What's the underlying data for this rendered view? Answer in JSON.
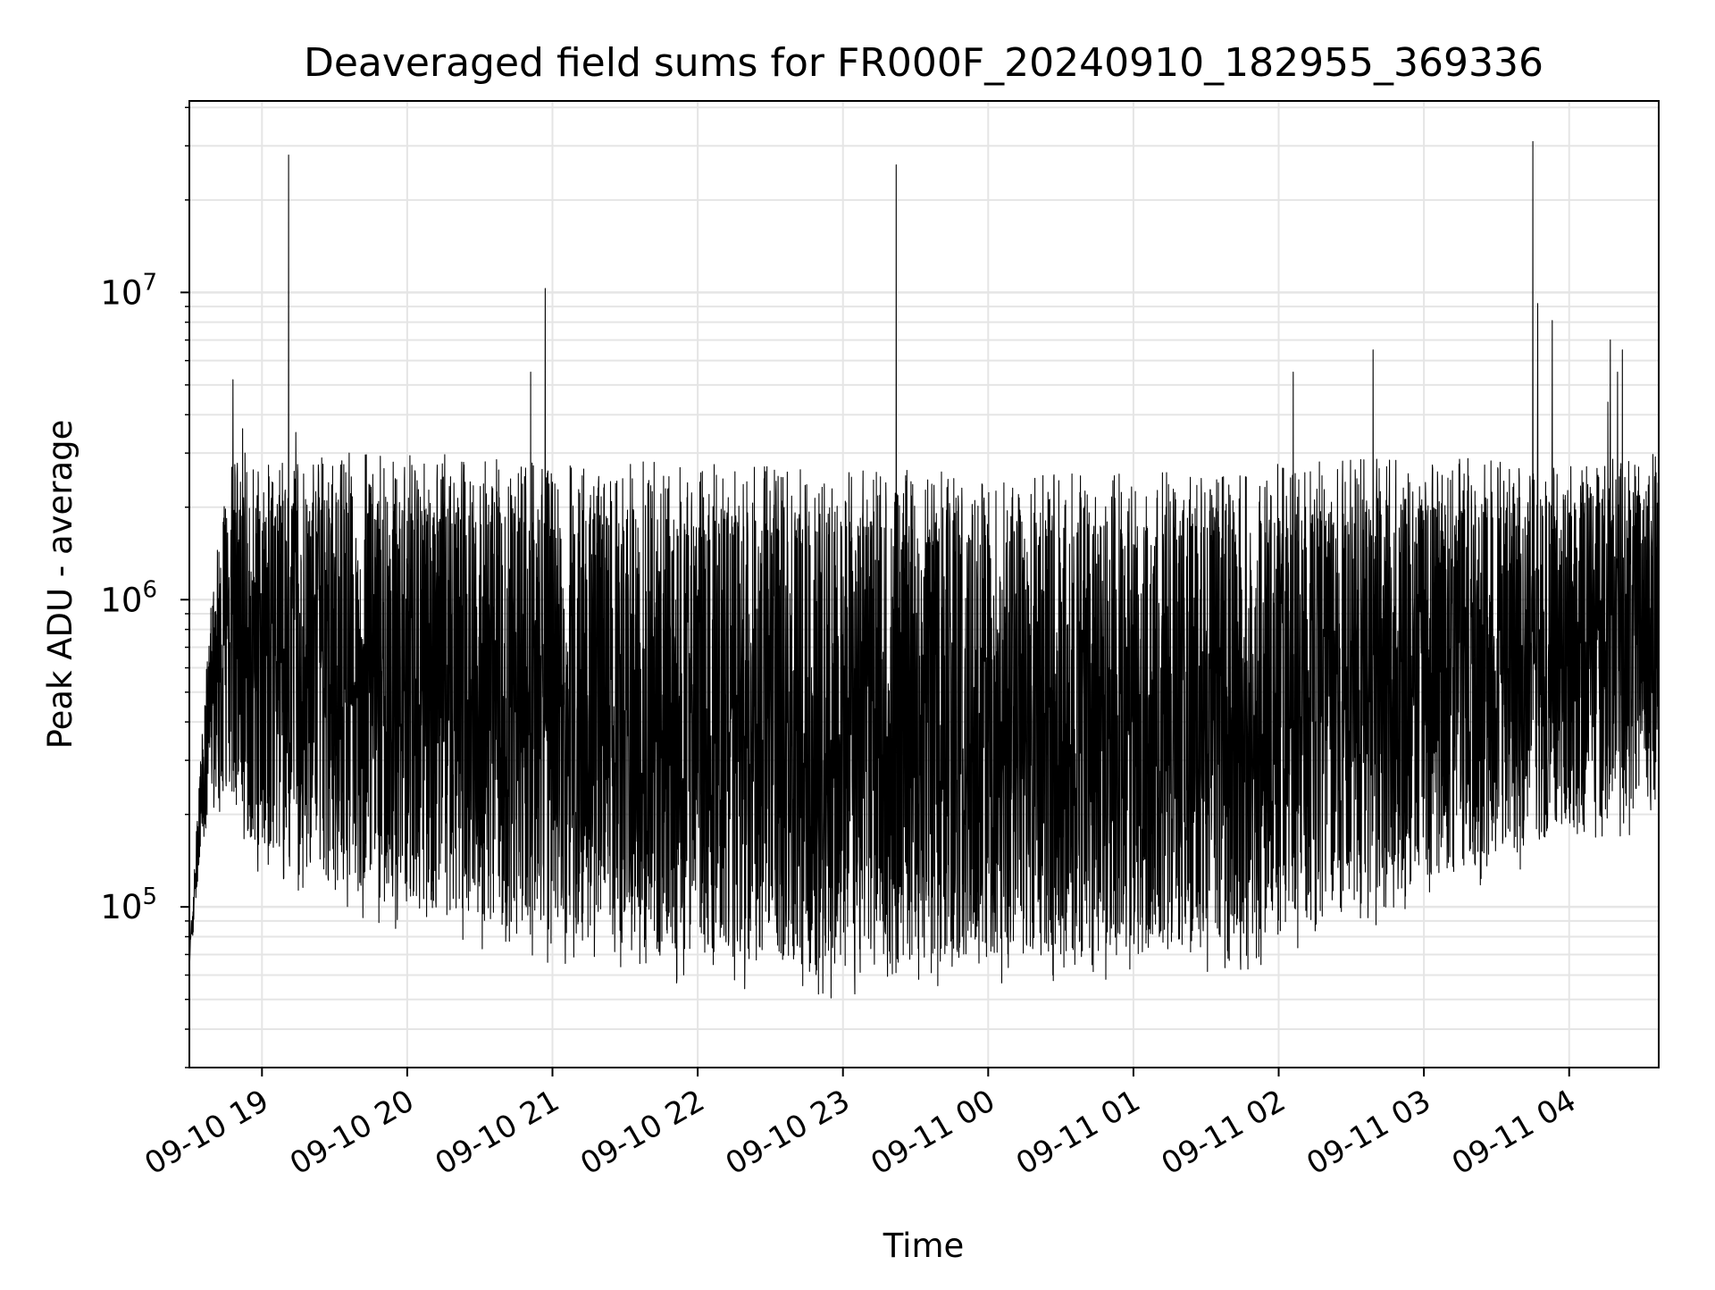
{
  "chart_data": {
    "type": "line",
    "title": "Deaveraged field sums for FR000F_20240910_182955_369336",
    "xlabel": "Time",
    "ylabel": "Peak ADU - average",
    "y_scale": "log",
    "ylim": [
      30000,
      42000000
    ],
    "xlim": [
      "2024-09-10 18:30",
      "2024-09-11 04:37"
    ],
    "grid": true,
    "line_color": "#000000",
    "grid_color": "#e5e5e5",
    "x_ticks": [
      {
        "t": "2024-09-10 19:00",
        "label": "09-10 19"
      },
      {
        "t": "2024-09-10 20:00",
        "label": "09-10 20"
      },
      {
        "t": "2024-09-10 21:00",
        "label": "09-10 21"
      },
      {
        "t": "2024-09-10 22:00",
        "label": "09-10 22"
      },
      {
        "t": "2024-09-10 23:00",
        "label": "09-10 23"
      },
      {
        "t": "2024-09-11 00:00",
        "label": "09-11 00"
      },
      {
        "t": "2024-09-11 01:00",
        "label": "09-11 01"
      },
      {
        "t": "2024-09-11 02:00",
        "label": "09-11 02"
      },
      {
        "t": "2024-09-11 03:00",
        "label": "09-11 03"
      },
      {
        "t": "2024-09-11 04:00",
        "label": "09-11 04"
      }
    ],
    "y_ticks": [
      {
        "value": 100000,
        "base": "10",
        "exp": "5"
      },
      {
        "value": 1000000,
        "base": "10",
        "exp": "6"
      },
      {
        "value": 10000000,
        "base": "10",
        "exp": "7"
      }
    ],
    "spikes": [
      {
        "t": "2024-09-10 18:48",
        "v": 5200000
      },
      {
        "t": "2024-09-10 18:52",
        "v": 3600000
      },
      {
        "t": "2024-09-10 18:53",
        "v": 3000000
      },
      {
        "t": "2024-09-10 19:11",
        "v": 28000000
      },
      {
        "t": "2024-09-10 19:14",
        "v": 3500000
      },
      {
        "t": "2024-09-10 19:36",
        "v": 3000000
      },
      {
        "t": "2024-09-10 20:51",
        "v": 5500000
      },
      {
        "t": "2024-09-10 20:57",
        "v": 10300000
      },
      {
        "t": "2024-09-10 21:42",
        "v": 2800000
      },
      {
        "t": "2024-09-10 23:22",
        "v": 26000000
      },
      {
        "t": "2024-09-11 02:06",
        "v": 5500000
      },
      {
        "t": "2024-09-11 02:39",
        "v": 6500000
      },
      {
        "t": "2024-09-11 03:45",
        "v": 31000000
      },
      {
        "t": "2024-09-11 03:47",
        "v": 9200000
      },
      {
        "t": "2024-09-11 03:53",
        "v": 8100000
      },
      {
        "t": "2024-09-11 04:16",
        "v": 4400000
      },
      {
        "t": "2024-09-11 04:17",
        "v": 7000000
      },
      {
        "t": "2024-09-11 04:20",
        "v": 5500000
      },
      {
        "t": "2024-09-11 04:22",
        "v": 6500000
      },
      {
        "t": "2024-09-11 04:23",
        "v": 2500000
      }
    ],
    "upper_envelope": [
      {
        "t": "2024-09-10 18:30",
        "v": 70000
      },
      {
        "t": "2024-09-10 18:35",
        "v": 300000
      },
      {
        "t": "2024-09-10 18:40",
        "v": 1000000
      },
      {
        "t": "2024-09-10 18:45",
        "v": 2000000
      },
      {
        "t": "2024-09-10 19:00",
        "v": 1800000
      },
      {
        "t": "2024-09-10 20:00",
        "v": 1800000
      },
      {
        "t": "2024-09-10 21:00",
        "v": 1600000
      },
      {
        "t": "2024-09-10 22:00",
        "v": 1600000
      },
      {
        "t": "2024-09-10 23:00",
        "v": 1500000
      },
      {
        "t": "2024-09-11 00:00",
        "v": 1500000
      },
      {
        "t": "2024-09-11 01:00",
        "v": 1500000
      },
      {
        "t": "2024-09-11 02:00",
        "v": 1600000
      },
      {
        "t": "2024-09-11 03:00",
        "v": 1800000
      },
      {
        "t": "2024-09-11 04:00",
        "v": 1800000
      },
      {
        "t": "2024-09-11 04:37",
        "v": 2000000
      }
    ],
    "lower_envelope": [
      {
        "t": "2024-09-10 18:30",
        "v": 60000
      },
      {
        "t": "2024-09-10 18:35",
        "v": 150000
      },
      {
        "t": "2024-09-10 18:40",
        "v": 200000
      },
      {
        "t": "2024-09-10 18:45",
        "v": 200000
      },
      {
        "t": "2024-09-10 19:00",
        "v": 120000
      },
      {
        "t": "2024-09-10 20:00",
        "v": 80000
      },
      {
        "t": "2024-09-10 21:00",
        "v": 65000
      },
      {
        "t": "2024-09-10 22:00",
        "v": 55000
      },
      {
        "t": "2024-09-10 23:00",
        "v": 50000
      },
      {
        "t": "2024-09-11 00:00",
        "v": 55000
      },
      {
        "t": "2024-09-11 01:00",
        "v": 55000
      },
      {
        "t": "2024-09-11 02:00",
        "v": 65000
      },
      {
        "t": "2024-09-11 03:00",
        "v": 100000
      },
      {
        "t": "2024-09-11 04:00",
        "v": 150000
      },
      {
        "t": "2024-09-11 04:37",
        "v": 180000
      }
    ]
  }
}
